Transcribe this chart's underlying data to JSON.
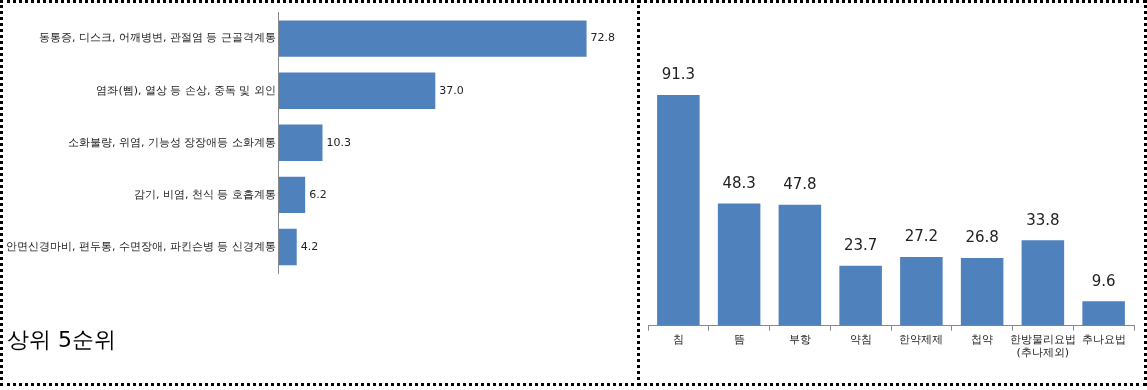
{
  "chart_data": [
    {
      "type": "bar",
      "orientation": "horizontal",
      "categories": [
        "동통증, 디스크, 어깨병변, 관절염 등 근골격계통",
        "염좌(삠), 열상 등 손상, 중독 및 외인",
        "소화불량, 위염, 기능성 장장애등 소화계통",
        "감기, 비염, 천식 등 호흡계통",
        "안면신경마비, 편두통, 수면장애, 파킨슨병 등 신경계통"
      ],
      "values": [
        72.8,
        37.0,
        10.3,
        6.2,
        4.2
      ],
      "value_labels": [
        "72.8",
        "37.0",
        "10.3",
        "6.2",
        "4.2"
      ],
      "color": "#4f81bd",
      "grid": false,
      "legend": false,
      "annotations": [
        "상위 5순위"
      ]
    },
    {
      "type": "bar",
      "categories": [
        "침",
        "뜸",
        "부항",
        "약침",
        "한약제제",
        "첩약",
        "한방물리요법\n(추나제외)",
        "추나요법"
      ],
      "values": [
        91.3,
        48.3,
        47.8,
        23.7,
        27.2,
        26.8,
        33.8,
        9.6
      ],
      "value_labels": [
        "91.3",
        "48.3",
        "47.8",
        "23.7",
        "27.2",
        "26.8",
        "33.8",
        "9.6"
      ],
      "color": "#4f81bd",
      "grid": false,
      "legend": false
    }
  ]
}
